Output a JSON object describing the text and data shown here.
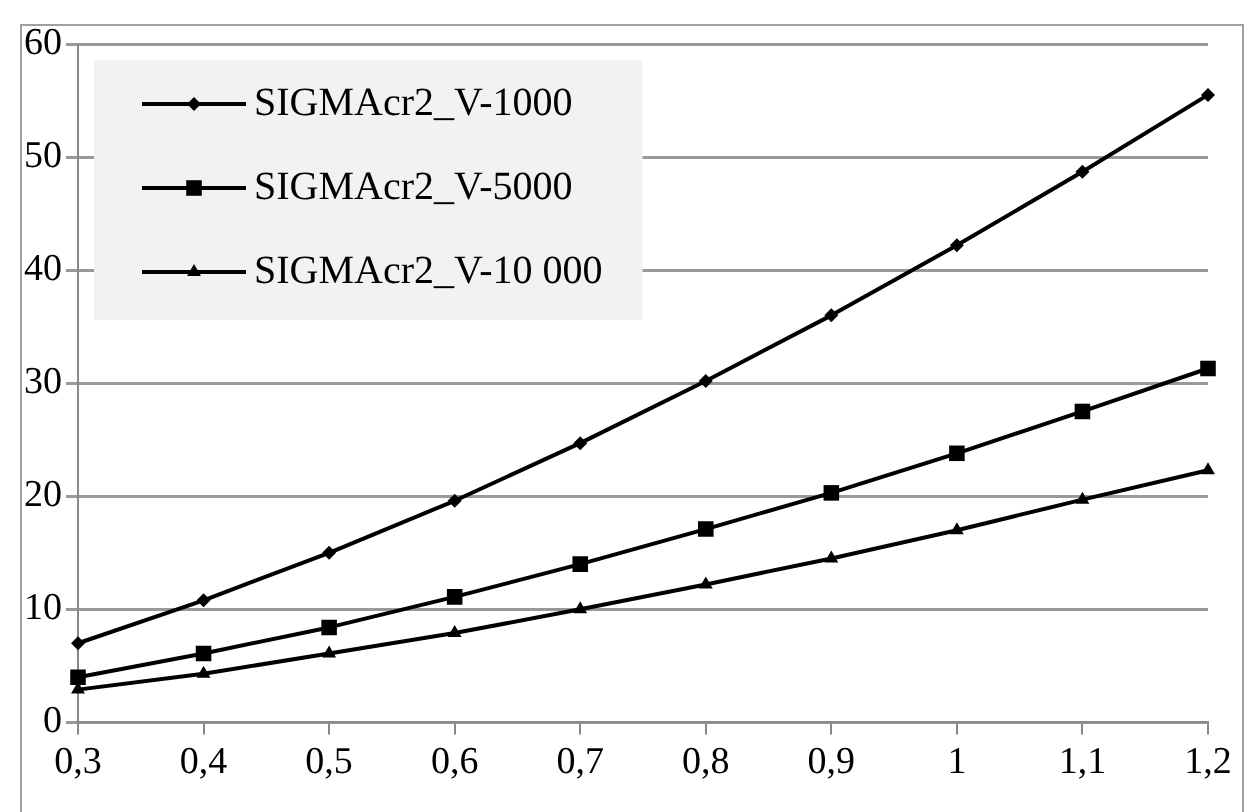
{
  "chart_data": {
    "type": "line",
    "categories": [
      "0,3",
      "0,4",
      "0,5",
      "0,6",
      "0,7",
      "0,8",
      "0,9",
      "1",
      "1,1",
      "1,2"
    ],
    "series": [
      {
        "name": "SIGMAcr2_V-1000",
        "color": "#000000",
        "marker": "diamond",
        "values": [
          7,
          10.8,
          15,
          19.6,
          24.7,
          30.2,
          36,
          42.2,
          48.7,
          55.5
        ]
      },
      {
        "name": "SIGMAcr2_V-5000",
        "color": "#000000",
        "marker": "square",
        "values": [
          4,
          6.1,
          8.4,
          11.1,
          14,
          17.1,
          20.3,
          23.8,
          27.5,
          31.3
        ]
      },
      {
        "name": "SIGMAcr2_V-10 000",
        "color": "#000000",
        "marker": "triangle",
        "values": [
          2.9,
          4.3,
          6.1,
          7.9,
          10,
          12.2,
          14.5,
          17,
          19.7,
          22.3
        ]
      }
    ],
    "ylim": [
      0,
      60
    ],
    "yticks": [
      0,
      10,
      20,
      30,
      40,
      50,
      60
    ],
    "grid": "y",
    "legend": "top left",
    "line_style": "solid"
  }
}
